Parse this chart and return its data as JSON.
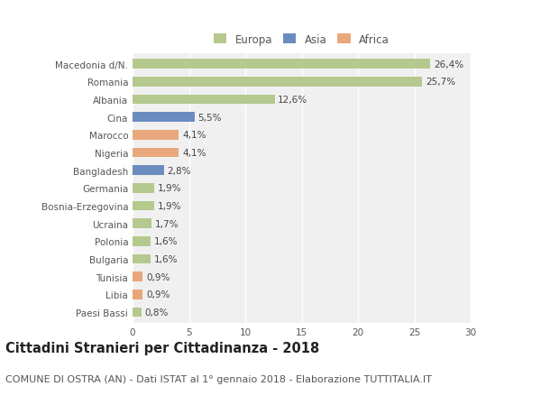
{
  "categories": [
    "Macedonia d/N.",
    "Romania",
    "Albania",
    "Cina",
    "Marocco",
    "Nigeria",
    "Bangladesh",
    "Germania",
    "Bosnia-Erzegovina",
    "Ucraina",
    "Polonia",
    "Bulgaria",
    "Tunisia",
    "Libia",
    "Paesi Bassi"
  ],
  "values": [
    26.4,
    25.7,
    12.6,
    5.5,
    4.1,
    4.1,
    2.8,
    1.9,
    1.9,
    1.7,
    1.6,
    1.6,
    0.9,
    0.9,
    0.8
  ],
  "labels": [
    "26,4%",
    "25,7%",
    "12,6%",
    "5,5%",
    "4,1%",
    "4,1%",
    "2,8%",
    "1,9%",
    "1,9%",
    "1,7%",
    "1,6%",
    "1,6%",
    "0,9%",
    "0,9%",
    "0,8%"
  ],
  "colors": [
    "#b5c98e",
    "#b5c98e",
    "#b5c98e",
    "#6b8cbf",
    "#e8a87c",
    "#e8a87c",
    "#6b8cbf",
    "#b5c98e",
    "#b5c98e",
    "#b5c98e",
    "#b5c98e",
    "#b5c98e",
    "#e8a87c",
    "#e8a87c",
    "#b5c98e"
  ],
  "legend_labels": [
    "Europa",
    "Asia",
    "Africa"
  ],
  "legend_colors": [
    "#b5c98e",
    "#6b8cbf",
    "#e8a87c"
  ],
  "xlim": [
    0,
    30
  ],
  "xticks": [
    0,
    5,
    10,
    15,
    20,
    25,
    30
  ],
  "title": "Cittadini Stranieri per Cittadinanza - 2018",
  "subtitle": "COMUNE DI OSTRA (AN) - Dati ISTAT al 1° gennaio 2018 - Elaborazione TUTTITALIA.IT",
  "bg_color": "#ffffff",
  "plot_bg_color": "#f0f0f0",
  "grid_color": "#ffffff",
  "bar_height": 0.55,
  "title_fontsize": 10.5,
  "subtitle_fontsize": 8,
  "label_fontsize": 7.5,
  "tick_fontsize": 7.5,
  "legend_fontsize": 8.5
}
